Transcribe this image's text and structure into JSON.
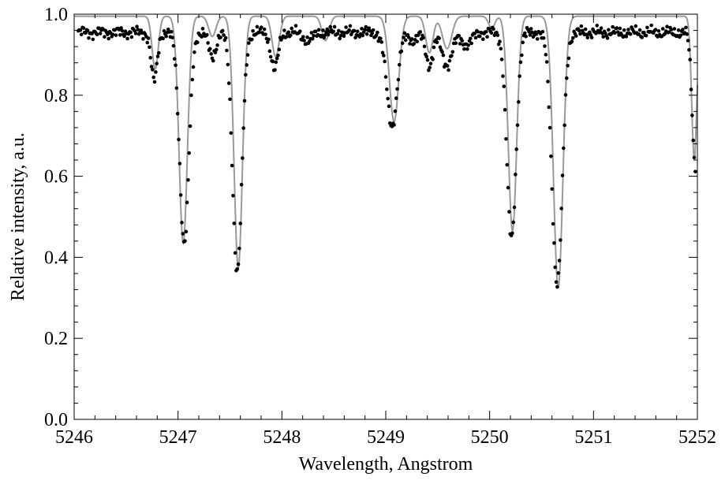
{
  "chart_data": {
    "type": "line",
    "title": "",
    "xlabel": "Wavelength, Angstrom",
    "ylabel": "Relative intensity, a.u.",
    "xlim": [
      5246,
      5252
    ],
    "ylim": [
      0.0,
      1.0
    ],
    "x_ticks": [
      "5246",
      "5247",
      "5248",
      "5249",
      "5250",
      "5251",
      "5252"
    ],
    "y_ticks": [
      "0.0",
      "0.2",
      "0.4",
      "0.6",
      "0.8",
      "1.0"
    ],
    "grid": false,
    "continuum": 0.955,
    "series": [
      {
        "kind": "observed",
        "style": "points",
        "color": "#000000",
        "lines": [
          {
            "center": 5246.77,
            "depth": 0.12,
            "width": 0.03
          },
          {
            "center": 5247.06,
            "depth": 0.52,
            "width": 0.045
          },
          {
            "center": 5247.33,
            "depth": 0.06,
            "width": 0.035
          },
          {
            "center": 5247.57,
            "depth": 0.59,
            "width": 0.045
          },
          {
            "center": 5247.93,
            "depth": 0.09,
            "width": 0.035
          },
          {
            "center": 5248.25,
            "depth": 0.02,
            "width": 0.05
          },
          {
            "center": 5249.06,
            "depth": 0.23,
            "width": 0.05
          },
          {
            "center": 5249.27,
            "depth": 0.02,
            "width": 0.04
          },
          {
            "center": 5249.42,
            "depth": 0.08,
            "width": 0.035
          },
          {
            "center": 5249.59,
            "depth": 0.08,
            "width": 0.05
          },
          {
            "center": 5249.78,
            "depth": 0.03,
            "width": 0.05
          },
          {
            "center": 5250.21,
            "depth": 0.51,
            "width": 0.045
          },
          {
            "center": 5250.65,
            "depth": 0.62,
            "width": 0.05
          },
          {
            "center": 5251.98,
            "depth": 0.33,
            "width": 0.03
          }
        ]
      },
      {
        "kind": "model",
        "style": "line",
        "color": "#999999",
        "lines": [
          {
            "center": 5246.78,
            "depth": 0.13,
            "width": 0.03
          },
          {
            "center": 5247.05,
            "depth": 0.56,
            "width": 0.04
          },
          {
            "center": 5247.33,
            "depth": 0.05,
            "width": 0.035
          },
          {
            "center": 5247.58,
            "depth": 0.62,
            "width": 0.04
          },
          {
            "center": 5247.94,
            "depth": 0.1,
            "width": 0.035
          },
          {
            "center": 5248.42,
            "depth": 0.06,
            "width": 0.035
          },
          {
            "center": 5249.08,
            "depth": 0.26,
            "width": 0.045
          },
          {
            "center": 5249.42,
            "depth": 0.09,
            "width": 0.035
          },
          {
            "center": 5249.59,
            "depth": 0.08,
            "width": 0.045
          },
          {
            "center": 5250.02,
            "depth": 0.03,
            "width": 0.03
          },
          {
            "center": 5250.22,
            "depth": 0.53,
            "width": 0.04
          },
          {
            "center": 5250.66,
            "depth": 0.67,
            "width": 0.045
          },
          {
            "center": 5251.97,
            "depth": 0.35,
            "width": 0.025
          }
        ]
      }
    ]
  }
}
